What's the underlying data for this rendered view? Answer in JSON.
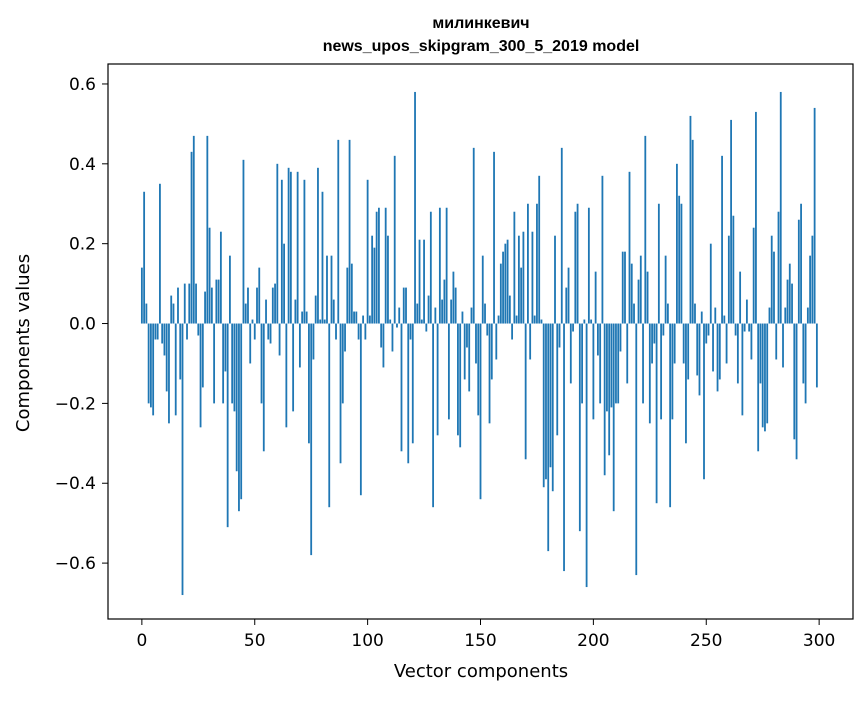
{
  "chart_data": {
    "type": "bar",
    "title": "милинкевич",
    "subtitle": "news_upos_skipgram_300_5_2019 model",
    "xlabel": "Vector components",
    "ylabel": "Components values",
    "xlim": [
      -15,
      315
    ],
    "ylim": [
      -0.74,
      0.65
    ],
    "xticks": [
      0,
      50,
      100,
      150,
      200,
      250,
      300
    ],
    "xtick_labels": [
      "0",
      "50",
      "100",
      "150",
      "200",
      "250",
      "300"
    ],
    "yticks": [
      0.6,
      0.4,
      0.2,
      0.0,
      -0.2,
      -0.4,
      -0.6
    ],
    "ytick_labels": [
      "0.6",
      "0.4",
      "0.2",
      "0.0",
      "−0.2",
      "−0.4",
      "−0.6"
    ],
    "bar_color": "#1f77b4",
    "grid": false,
    "legend": "none",
    "x": [
      0,
      1,
      2,
      3,
      4,
      5,
      6,
      7,
      8,
      9,
      10,
      11,
      12,
      13,
      14,
      15,
      16,
      17,
      18,
      19,
      20,
      21,
      22,
      23,
      24,
      25,
      26,
      27,
      28,
      29,
      30,
      31,
      32,
      33,
      34,
      35,
      36,
      37,
      38,
      39,
      40,
      41,
      42,
      43,
      44,
      45,
      46,
      47,
      48,
      49,
      50,
      51,
      52,
      53,
      54,
      55,
      56,
      57,
      58,
      59,
      60,
      61,
      62,
      63,
      64,
      65,
      66,
      67,
      68,
      69,
      70,
      71,
      72,
      73,
      74,
      75,
      76,
      77,
      78,
      79,
      80,
      81,
      82,
      83,
      84,
      85,
      86,
      87,
      88,
      89,
      90,
      91,
      92,
      93,
      94,
      95,
      96,
      97,
      98,
      99,
      100,
      101,
      102,
      103,
      104,
      105,
      106,
      107,
      108,
      109,
      110,
      111,
      112,
      113,
      114,
      115,
      116,
      117,
      118,
      119,
      120,
      121,
      122,
      123,
      124,
      125,
      126,
      127,
      128,
      129,
      130,
      131,
      132,
      133,
      134,
      135,
      136,
      137,
      138,
      139,
      140,
      141,
      142,
      143,
      144,
      145,
      146,
      147,
      148,
      149,
      150,
      151,
      152,
      153,
      154,
      155,
      156,
      157,
      158,
      159,
      160,
      161,
      162,
      163,
      164,
      165,
      166,
      167,
      168,
      169,
      170,
      171,
      172,
      173,
      174,
      175,
      176,
      177,
      178,
      179,
      180,
      181,
      182,
      183,
      184,
      185,
      186,
      187,
      188,
      189,
      190,
      191,
      192,
      193,
      194,
      195,
      196,
      197,
      198,
      199,
      200,
      201,
      202,
      203,
      204,
      205,
      206,
      207,
      208,
      209,
      210,
      211,
      212,
      213,
      214,
      215,
      216,
      217,
      218,
      219,
      220,
      221,
      222,
      223,
      224,
      225,
      226,
      227,
      228,
      229,
      230,
      231,
      232,
      233,
      234,
      235,
      236,
      237,
      238,
      239,
      240,
      241,
      242,
      243,
      244,
      245,
      246,
      247,
      248,
      249,
      250,
      251,
      252,
      253,
      254,
      255,
      256,
      257,
      258,
      259,
      260,
      261,
      262,
      263,
      264,
      265,
      266,
      267,
      268,
      269,
      270,
      271,
      272,
      273,
      274,
      275,
      276,
      277,
      278,
      279,
      280,
      281,
      282,
      283,
      284,
      285,
      286,
      287,
      288,
      289,
      290,
      291,
      292,
      293,
      294,
      295,
      296,
      297,
      298,
      299
    ],
    "values": [
      0.14,
      0.33,
      0.05,
      -0.2,
      -0.21,
      -0.23,
      -0.04,
      -0.04,
      0.35,
      -0.05,
      -0.08,
      -0.17,
      -0.25,
      0.07,
      0.05,
      -0.23,
      0.09,
      -0.14,
      -0.68,
      0.1,
      -0.04,
      0.1,
      0.43,
      0.47,
      0.1,
      -0.03,
      -0.26,
      -0.16,
      0.08,
      0.47,
      0.24,
      0.09,
      -0.2,
      0.11,
      0.11,
      0.23,
      -0.2,
      -0.12,
      -0.51,
      0.17,
      -0.2,
      -0.22,
      -0.37,
      -0.47,
      -0.44,
      0.41,
      0.05,
      0.09,
      -0.1,
      0.01,
      -0.04,
      0.09,
      0.14,
      -0.2,
      -0.32,
      0.06,
      -0.04,
      -0.05,
      0.09,
      0.1,
      0.4,
      -0.08,
      0.36,
      0.2,
      -0.26,
      0.39,
      0.38,
      -0.22,
      0.06,
      0.38,
      -0.11,
      0.03,
      0.36,
      0.03,
      -0.3,
      -0.58,
      -0.09,
      0.07,
      0.39,
      0.01,
      0.33,
      0.01,
      0.17,
      -0.46,
      0.17,
      0.06,
      -0.04,
      0.46,
      -0.35,
      -0.2,
      -0.07,
      0.14,
      0.46,
      0.15,
      0.03,
      0.03,
      -0.04,
      -0.43,
      0.02,
      -0.04,
      0.36,
      0.02,
      0.22,
      0.19,
      0.28,
      0.29,
      -0.06,
      -0.11,
      0.29,
      0.22,
      0.01,
      -0.07,
      0.42,
      -0.01,
      0.04,
      -0.32,
      0.09,
      0.09,
      -0.35,
      -0.04,
      -0.3,
      0.58,
      0.05,
      0.21,
      0.01,
      0.21,
      -0.02,
      0.07,
      0.28,
      -0.46,
      0.04,
      -0.28,
      0.29,
      0.06,
      0.11,
      0.29,
      -0.24,
      0.06,
      0.13,
      0.09,
      -0.28,
      -0.31,
      0.03,
      -0.14,
      -0.06,
      -0.17,
      0.04,
      0.44,
      -0.1,
      -0.23,
      -0.44,
      0.17,
      0.05,
      -0.03,
      -0.25,
      -0.14,
      0.43,
      -0.09,
      0.02,
      0.15,
      0.18,
      0.2,
      0.21,
      0.07,
      -0.04,
      0.28,
      0.02,
      0.22,
      0.14,
      0.23,
      -0.34,
      0.3,
      -0.09,
      0.23,
      0.02,
      0.3,
      0.37,
      0.01,
      -0.41,
      -0.39,
      -0.57,
      -0.36,
      -0.42,
      0.22,
      -0.28,
      -0.06,
      0.44,
      -0.62,
      0.09,
      0.14,
      -0.15,
      -0.02,
      0.28,
      0.3,
      -0.52,
      -0.2,
      0.01,
      -0.66,
      0.29,
      0.01,
      -0.24,
      0.13,
      -0.08,
      -0.2,
      0.37,
      -0.38,
      -0.22,
      -0.33,
      -0.21,
      -0.47,
      -0.2,
      -0.2,
      -0.07,
      0.18,
      0.18,
      -0.15,
      0.38,
      0.15,
      0.05,
      -0.63,
      0.11,
      0.17,
      -0.2,
      0.47,
      0.13,
      -0.25,
      -0.1,
      -0.05,
      -0.45,
      0.3,
      -0.24,
      -0.03,
      0.17,
      0.05,
      -0.46,
      -0.24,
      -0.1,
      0.4,
      0.32,
      0.3,
      -0.1,
      -0.3,
      -0.14,
      0.52,
      0.46,
      0.05,
      -0.13,
      -0.18,
      0.03,
      -0.39,
      -0.05,
      -0.03,
      0.2,
      -0.12,
      0.04,
      -0.17,
      -0.14,
      0.42,
      0.02,
      -0.1,
      0.22,
      0.51,
      0.27,
      -0.03,
      -0.15,
      0.13,
      -0.23,
      -0.02,
      0.06,
      -0.02,
      -0.09,
      0.24,
      0.53,
      -0.32,
      -0.15,
      -0.26,
      -0.27,
      -0.25,
      0.04,
      0.22,
      0.18,
      -0.09,
      0.28,
      0.58,
      -0.11,
      0.04,
      0.11,
      0.15,
      0.1,
      -0.29,
      -0.34,
      0.26,
      0.3,
      -0.15,
      -0.2,
      0.04,
      0.17,
      0.22,
      0.54,
      -0.16
    ]
  }
}
